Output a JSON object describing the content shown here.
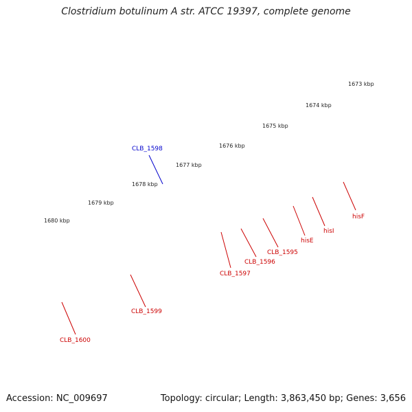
{
  "title": "Clostridium botulinum A str. ATCC 19397, complete genome",
  "footer": {
    "accession": "Accession: NC_009697",
    "stats": "Topology: circular; Length: 3,863,450 bp; Genes: 3,656"
  },
  "scale_labels": [
    "1673 kbp",
    "1674 kbp",
    "1675 kbp",
    "1676 kbp",
    "1677 kbp",
    "1678 kbp",
    "1679 kbp",
    "1680 kbp"
  ],
  "genes": [
    {
      "name": "CLB_1598",
      "color": "#0000cc"
    },
    {
      "name": "CLB_1599",
      "color": "#cc0000"
    },
    {
      "name": "CLB_1600",
      "color": "#cc0000"
    },
    {
      "name": "CLB_1597",
      "color": "#cc0000"
    },
    {
      "name": "CLB_1596",
      "color": "#cc0000"
    },
    {
      "name": "CLB_1595",
      "color": "#cc0000"
    },
    {
      "name": "hisE",
      "color": "#cc0000"
    },
    {
      "name": "hisI",
      "color": "#cc0000"
    },
    {
      "name": "hisF",
      "color": "#cc0000"
    }
  ],
  "colors": {
    "cds_forward": "#ff1010",
    "cds_reverse_highlight": "#0000ee",
    "rna_or_hypothetical": "#ff8c00",
    "blast_hit": "#4a7fb5",
    "no_hit": "#a6a6a6",
    "backbone": "#777777",
    "ticks": "#1a7a1a"
  }
}
